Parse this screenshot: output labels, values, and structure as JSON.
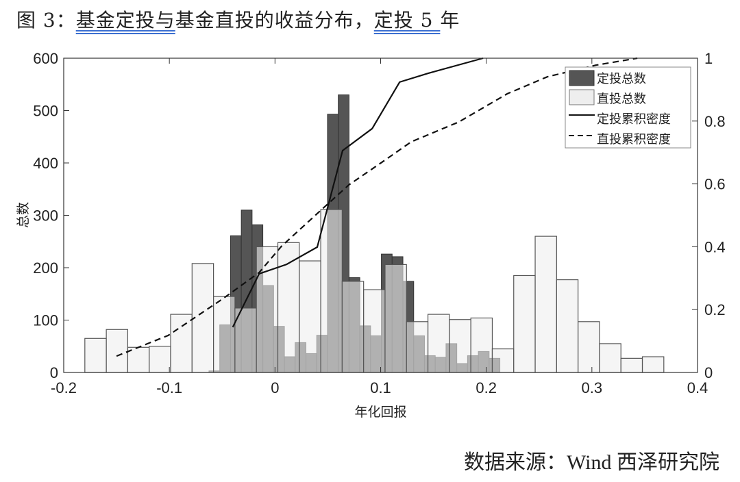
{
  "title": {
    "prefix": "图 3：",
    "link1": "基金定投与",
    "mid": "基金直投的收益分布，",
    "link2": "定投 5 ",
    "suffix": "年"
  },
  "source": "数据来源：Wind   西泽研究院",
  "colors": {
    "dca_bar": "#555555",
    "direct_bar": "#eeeeee",
    "overlap": "#b3b3b3",
    "line": "#111111",
    "link_underline": "#3b6fd1"
  },
  "chart_data": {
    "type": "bar",
    "xlabel": "年化回报",
    "ylabel": "总数",
    "xlim": [
      -0.2,
      0.4
    ],
    "ylim": [
      0,
      600
    ],
    "y2lim": [
      0,
      1
    ],
    "xticks": [
      "-0.2",
      "-0.1",
      "0",
      "0.1",
      "0.2",
      "0.3",
      "0.4"
    ],
    "yticks": [
      "0",
      "100",
      "200",
      "300",
      "400",
      "500",
      "600"
    ],
    "y2ticks": [
      "0",
      "0.2",
      "0.4",
      "0.6",
      "0.8",
      "1"
    ],
    "legend_position": "top-right",
    "grid": false,
    "series": [
      {
        "name": "定投总数",
        "kind": "histogram",
        "bin_start": -0.0625,
        "bin_width": 0.0102,
        "values": [
          3,
          91,
          261,
          310,
          282,
          166,
          88,
          30,
          57,
          36,
          71,
          493,
          530,
          181,
          89,
          70,
          226,
          221,
          174,
          70,
          32,
          29,
          55,
          17,
          32,
          40,
          27
        ]
      },
      {
        "name": "直投总数",
        "kind": "histogram",
        "bin_start": -0.18,
        "bin_width": 0.0203,
        "values": [
          65,
          82,
          48,
          50,
          111,
          208,
          145,
          123,
          240,
          248,
          213,
          311,
          174,
          158,
          206,
          97,
          111,
          101,
          104,
          45,
          185,
          260,
          177,
          97,
          55,
          27,
          30
        ]
      },
      {
        "name": "定投累积密度",
        "kind": "line",
        "axis": "right",
        "style": "solid",
        "x": [
          -0.04,
          -0.015,
          0.011,
          0.04,
          0.064,
          0.092,
          0.118,
          0.145,
          0.197
        ],
        "y": [
          0.144,
          0.314,
          0.344,
          0.399,
          0.706,
          0.776,
          0.924,
          0.952,
          1.0
        ]
      },
      {
        "name": "直投累积密度",
        "kind": "line",
        "axis": "right",
        "style": "dashed",
        "x": [
          -0.15,
          -0.101,
          -0.05,
          -0.015,
          0.006,
          0.045,
          0.07,
          0.103,
          0.129,
          0.174,
          0.22,
          0.258,
          0.304,
          0.343
        ],
        "y": [
          0.052,
          0.118,
          0.233,
          0.318,
          0.401,
          0.521,
          0.597,
          0.673,
          0.734,
          0.797,
          0.887,
          0.941,
          0.978,
          1.0
        ]
      }
    ]
  }
}
